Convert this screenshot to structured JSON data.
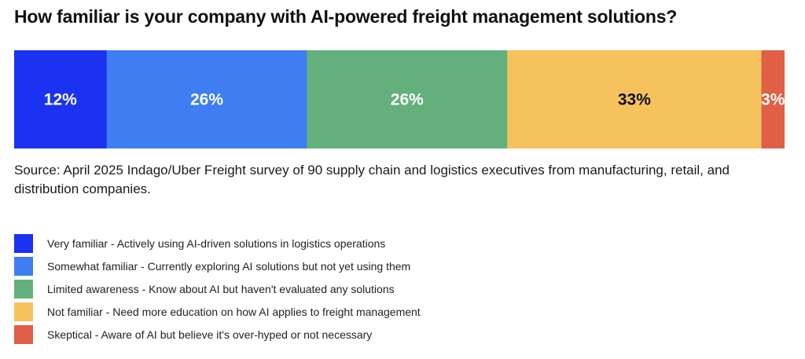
{
  "chart_data": {
    "type": "bar",
    "orientation": "horizontal-stacked",
    "title": "How familiar is your company with AI-powered freight management solutions?",
    "unit": "%",
    "xlim": [
      0,
      100
    ],
    "grid": false,
    "legend_placement": "bottom-left",
    "series": [
      {
        "name": "Very familiar - Actively using AI-driven solutions in logistics operations",
        "value": 12,
        "label": "12%",
        "color": "#1b32f0",
        "label_color": "#ffffff"
      },
      {
        "name": "Somewhat familiar - Currently exploring AI solutions but not yet using them",
        "value": 26,
        "label": "26%",
        "color": "#3e7ef2",
        "label_color": "#ffffff"
      },
      {
        "name": "Limited awareness - Know about AI but haven't evaluated any solutions",
        "value": 26,
        "label": "26%",
        "color": "#64b07c",
        "label_color": "#ffffff"
      },
      {
        "name": "Not familiar - Need more education on how AI applies to freight management",
        "value": 33,
        "label": "33%",
        "color": "#f5c25e",
        "label_color": "#111111"
      },
      {
        "name": "Skeptical - Aware of AI but believe it's over-hyped or not necessary",
        "value": 3,
        "label": "3%",
        "color": "#e05f45",
        "label_color": "#ffffff"
      }
    ]
  },
  "source_text": "Source: April 2025 Indago/Uber Freight survey of 90 supply chain and logistics executives from manufacturing, retail, and distribution companies."
}
